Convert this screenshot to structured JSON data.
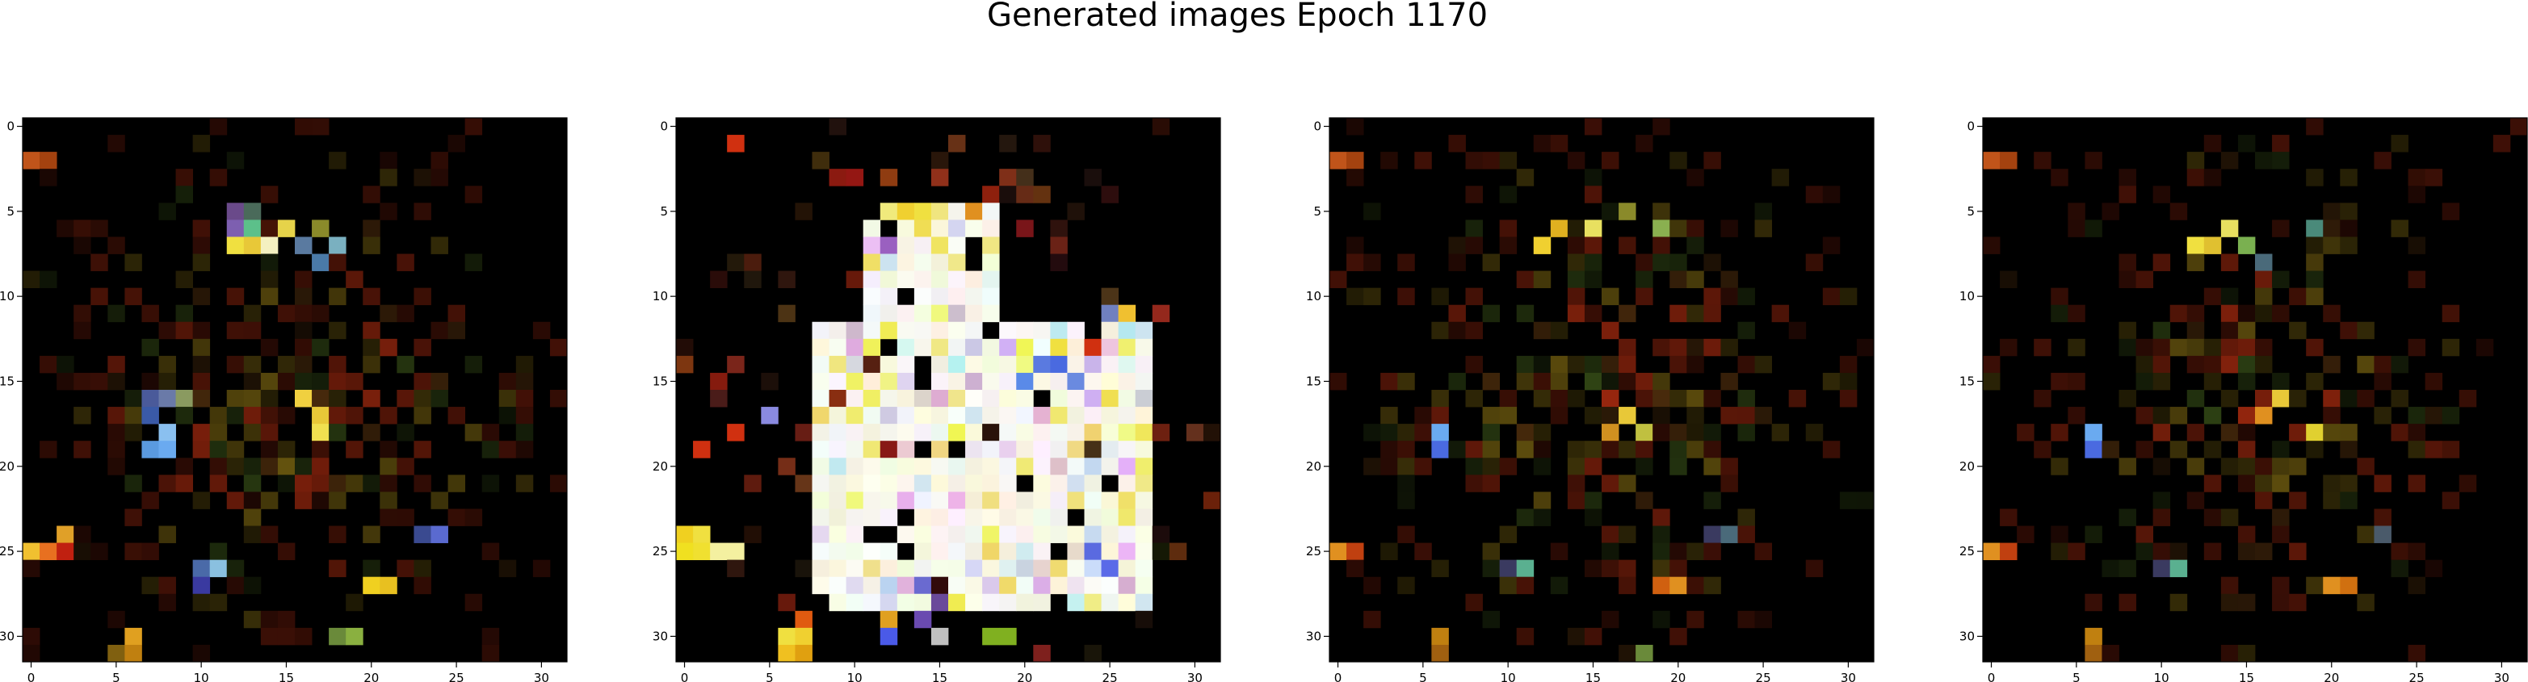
{
  "figure": {
    "title": "Generated images Epoch 1170"
  },
  "chart_data": [
    {
      "type": "heatmap",
      "description_panel": "1",
      "x_ticks": [
        "0",
        "5",
        "10",
        "15",
        "20",
        "25",
        "30"
      ],
      "y_ticks": [
        "0",
        "5",
        "10",
        "15",
        "20",
        "25",
        "30"
      ],
      "xlim": [
        -0.5,
        31.5
      ],
      "ylim": [
        31.5,
        -0.5
      ],
      "grid_size": 32,
      "seed": 11,
      "figure_style": "sparse",
      "hotspots": [
        {
          "x": 0,
          "y": 2,
          "color": "#c0541a"
        },
        {
          "x": 1,
          "y": 2,
          "color": "#a4420f"
        },
        {
          "x": 12,
          "y": 5,
          "color": "#6a4a8a"
        },
        {
          "x": 13,
          "y": 5,
          "color": "#4a6a5a"
        },
        {
          "x": 12,
          "y": 6,
          "color": "#7d5fb0"
        },
        {
          "x": 13,
          "y": 6,
          "color": "#5cc08a"
        },
        {
          "x": 15,
          "y": 6,
          "color": "#e6d34a"
        },
        {
          "x": 17,
          "y": 6,
          "color": "#8a8a2a"
        },
        {
          "x": 12,
          "y": 7,
          "color": "#f0e040"
        },
        {
          "x": 13,
          "y": 7,
          "color": "#e8c838"
        },
        {
          "x": 14,
          "y": 7,
          "color": "#f4f0c0"
        },
        {
          "x": 16,
          "y": 7,
          "color": "#5a7aa0"
        },
        {
          "x": 18,
          "y": 7,
          "color": "#7ab0c0"
        },
        {
          "x": 17,
          "y": 8,
          "color": "#4a7aa8"
        },
        {
          "x": 7,
          "y": 16,
          "color": "#4a5a9a"
        },
        {
          "x": 8,
          "y": 16,
          "color": "#6a7aa8"
        },
        {
          "x": 9,
          "y": 16,
          "color": "#8a9a60"
        },
        {
          "x": 7,
          "y": 17,
          "color": "#3a5aa8"
        },
        {
          "x": 8,
          "y": 18,
          "color": "#8ac0f0"
        },
        {
          "x": 7,
          "y": 19,
          "color": "#5a9ae0"
        },
        {
          "x": 8,
          "y": 19,
          "color": "#6aaaf0"
        },
        {
          "x": 16,
          "y": 16,
          "color": "#f0d040"
        },
        {
          "x": 17,
          "y": 17,
          "color": "#e8c838"
        },
        {
          "x": 17,
          "y": 18,
          "color": "#f0e050"
        },
        {
          "x": 0,
          "y": 25,
          "color": "#f0c030"
        },
        {
          "x": 1,
          "y": 25,
          "color": "#e87020"
        },
        {
          "x": 2,
          "y": 25,
          "color": "#c02010"
        },
        {
          "x": 2,
          "y": 24,
          "color": "#e0a028"
        },
        {
          "x": 10,
          "y": 26,
          "color": "#4a6aa8"
        },
        {
          "x": 11,
          "y": 26,
          "color": "#8ac0e0"
        },
        {
          "x": 10,
          "y": 27,
          "color": "#3a3aa0"
        },
        {
          "x": 24,
          "y": 24,
          "color": "#5a6ad0"
        },
        {
          "x": 23,
          "y": 24,
          "color": "#3a4a90"
        },
        {
          "x": 20,
          "y": 27,
          "color": "#f0d020"
        },
        {
          "x": 21,
          "y": 27,
          "color": "#e8c020"
        },
        {
          "x": 6,
          "y": 30,
          "color": "#e0a020"
        },
        {
          "x": 6,
          "y": 31,
          "color": "#c08010"
        },
        {
          "x": 5,
          "y": 31,
          "color": "#806010"
        },
        {
          "x": 18,
          "y": 30,
          "color": "#6a8a3a"
        },
        {
          "x": 19,
          "y": 30,
          "color": "#8ab040"
        }
      ]
    },
    {
      "type": "heatmap",
      "description_panel": "2",
      "x_ticks": [
        "0",
        "5",
        "10",
        "15",
        "20",
        "25",
        "30"
      ],
      "y_ticks": [
        "0",
        "5",
        "10",
        "15",
        "20",
        "25",
        "30"
      ],
      "xlim": [
        -0.5,
        31.5
      ],
      "ylim": [
        31.5,
        -0.5
      ],
      "grid_size": 32,
      "seed": 23,
      "figure_style": "bright",
      "hotspots": [
        {
          "x": 3,
          "y": 1,
          "color": "#d03010"
        },
        {
          "x": 13,
          "y": 5,
          "color": "#f0d030"
        },
        {
          "x": 14,
          "y": 5,
          "color": "#f0e040"
        },
        {
          "x": 17,
          "y": 5,
          "color": "#e09020"
        },
        {
          "x": 12,
          "y": 7,
          "color": "#9a60c0"
        },
        {
          "x": 25,
          "y": 11,
          "color": "#7080c0"
        },
        {
          "x": 26,
          "y": 11,
          "color": "#f0c030"
        },
        {
          "x": 22,
          "y": 13,
          "color": "#f0e040"
        },
        {
          "x": 24,
          "y": 13,
          "color": "#d03010"
        },
        {
          "x": 21,
          "y": 14,
          "color": "#5a7ae0"
        },
        {
          "x": 22,
          "y": 14,
          "color": "#4a6ae0"
        },
        {
          "x": 20,
          "y": 15,
          "color": "#5a8ae8"
        },
        {
          "x": 23,
          "y": 15,
          "color": "#6a8ae0"
        },
        {
          "x": 5,
          "y": 17,
          "color": "#8a8ae0"
        },
        {
          "x": 3,
          "y": 18,
          "color": "#d03010"
        },
        {
          "x": 1,
          "y": 19,
          "color": "#d03010"
        },
        {
          "x": 0,
          "y": 24,
          "color": "#f0d020"
        },
        {
          "x": 1,
          "y": 24,
          "color": "#f0e040"
        },
        {
          "x": 0,
          "y": 25,
          "color": "#f0e020"
        },
        {
          "x": 1,
          "y": 25,
          "color": "#f0e030"
        },
        {
          "x": 2,
          "y": 25,
          "color": "#f4f0a0"
        },
        {
          "x": 3,
          "y": 25,
          "color": "#f4f0a0"
        },
        {
          "x": 24,
          "y": 25,
          "color": "#5a6ae0"
        },
        {
          "x": 25,
          "y": 26,
          "color": "#5a6ae8"
        },
        {
          "x": 14,
          "y": 27,
          "color": "#6a6ad0"
        },
        {
          "x": 15,
          "y": 28,
          "color": "#6a4a9a"
        },
        {
          "x": 14,
          "y": 29,
          "color": "#6a4ab0"
        },
        {
          "x": 7,
          "y": 29,
          "color": "#e05a10"
        },
        {
          "x": 12,
          "y": 29,
          "color": "#e0a020"
        },
        {
          "x": 12,
          "y": 30,
          "color": "#4a5ae8"
        },
        {
          "x": 15,
          "y": 30,
          "color": "#c0c0c0"
        },
        {
          "x": 18,
          "y": 30,
          "color": "#80b020"
        },
        {
          "x": 19,
          "y": 30,
          "color": "#80b020"
        },
        {
          "x": 6,
          "y": 30,
          "color": "#f0e040"
        },
        {
          "x": 7,
          "y": 30,
          "color": "#f0d030"
        },
        {
          "x": 6,
          "y": 31,
          "color": "#f0c020"
        },
        {
          "x": 7,
          "y": 31,
          "color": "#e0a010"
        }
      ]
    },
    {
      "type": "heatmap",
      "description_panel": "3",
      "x_ticks": [
        "0",
        "5",
        "10",
        "15",
        "20",
        "25",
        "30"
      ],
      "y_ticks": [
        "0",
        "5",
        "10",
        "15",
        "20",
        "25",
        "30"
      ],
      "xlim": [
        -0.5,
        31.5
      ],
      "ylim": [
        31.5,
        -0.5
      ],
      "grid_size": 32,
      "seed": 37,
      "figure_style": "sparse",
      "hotspots": [
        {
          "x": 0,
          "y": 2,
          "color": "#c0541a"
        },
        {
          "x": 1,
          "y": 2,
          "color": "#a4420f"
        },
        {
          "x": 12,
          "y": 7,
          "color": "#f0d030"
        },
        {
          "x": 13,
          "y": 6,
          "color": "#e0b020"
        },
        {
          "x": 15,
          "y": 6,
          "color": "#e8e060"
        },
        {
          "x": 17,
          "y": 5,
          "color": "#8a8a2a"
        },
        {
          "x": 19,
          "y": 6,
          "color": "#8ab050"
        },
        {
          "x": 6,
          "y": 18,
          "color": "#6aaaf0"
        },
        {
          "x": 6,
          "y": 19,
          "color": "#4a6ae0"
        },
        {
          "x": 17,
          "y": 17,
          "color": "#e8c838"
        },
        {
          "x": 16,
          "y": 18,
          "color": "#d09020"
        },
        {
          "x": 18,
          "y": 18,
          "color": "#c0c040"
        },
        {
          "x": 0,
          "y": 25,
          "color": "#e09020"
        },
        {
          "x": 1,
          "y": 25,
          "color": "#c04010"
        },
        {
          "x": 11,
          "y": 26,
          "color": "#5ab090"
        },
        {
          "x": 10,
          "y": 26,
          "color": "#3a3a60"
        },
        {
          "x": 23,
          "y": 24,
          "color": "#4a6a7a"
        },
        {
          "x": 22,
          "y": 24,
          "color": "#3a3a60"
        },
        {
          "x": 20,
          "y": 27,
          "color": "#e09020"
        },
        {
          "x": 19,
          "y": 27,
          "color": "#d06010"
        },
        {
          "x": 6,
          "y": 30,
          "color": "#c08010"
        },
        {
          "x": 6,
          "y": 31,
          "color": "#a06010"
        },
        {
          "x": 18,
          "y": 31,
          "color": "#6a8a3a"
        }
      ]
    },
    {
      "type": "heatmap",
      "description_panel": "4",
      "x_ticks": [
        "0",
        "5",
        "10",
        "15",
        "20",
        "25",
        "30"
      ],
      "y_ticks": [
        "0",
        "5",
        "10",
        "15",
        "20",
        "25",
        "30"
      ],
      "xlim": [
        -0.5,
        31.5
      ],
      "ylim": [
        31.5,
        -0.5
      ],
      "grid_size": 32,
      "seed": 51,
      "figure_style": "sparse",
      "hotspots": [
        {
          "x": 0,
          "y": 2,
          "color": "#c0541a"
        },
        {
          "x": 1,
          "y": 2,
          "color": "#a4420f"
        },
        {
          "x": 12,
          "y": 7,
          "color": "#f0e040"
        },
        {
          "x": 13,
          "y": 7,
          "color": "#e0c030"
        },
        {
          "x": 14,
          "y": 6,
          "color": "#e8e060"
        },
        {
          "x": 15,
          "y": 7,
          "color": "#7ab050"
        },
        {
          "x": 16,
          "y": 8,
          "color": "#4a6a7a"
        },
        {
          "x": 19,
          "y": 6,
          "color": "#4a8a7a"
        },
        {
          "x": 6,
          "y": 18,
          "color": "#6aaaf0"
        },
        {
          "x": 6,
          "y": 19,
          "color": "#4a6ae0"
        },
        {
          "x": 17,
          "y": 16,
          "color": "#e8c838"
        },
        {
          "x": 16,
          "y": 17,
          "color": "#e09020"
        },
        {
          "x": 19,
          "y": 18,
          "color": "#e0d030"
        },
        {
          "x": 0,
          "y": 25,
          "color": "#e09020"
        },
        {
          "x": 1,
          "y": 25,
          "color": "#c04010"
        },
        {
          "x": 11,
          "y": 26,
          "color": "#5ab090"
        },
        {
          "x": 10,
          "y": 26,
          "color": "#3a3a60"
        },
        {
          "x": 23,
          "y": 24,
          "color": "#4a5a6a"
        },
        {
          "x": 20,
          "y": 27,
          "color": "#e09020"
        },
        {
          "x": 21,
          "y": 27,
          "color": "#d07010"
        },
        {
          "x": 6,
          "y": 30,
          "color": "#c08010"
        },
        {
          "x": 6,
          "y": 31,
          "color": "#a06010"
        }
      ]
    }
  ]
}
